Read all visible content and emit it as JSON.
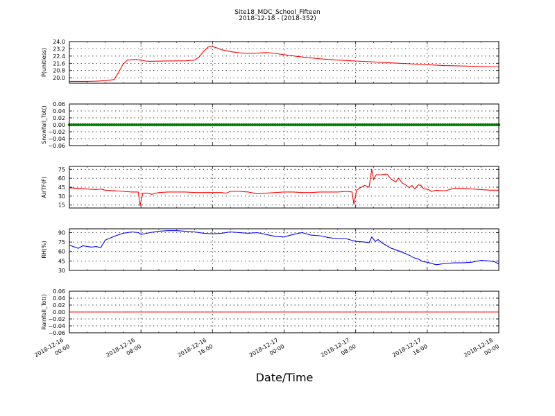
{
  "figure": {
    "title": "Site18_MDC_School_Fifteen",
    "subtitle": "2018-12-18 - (2018-352)",
    "xlabel": "Date/Time",
    "xticks": [
      {
        "t": 0,
        "line1": "2018-12-16",
        "line2": "00:00"
      },
      {
        "t": 8,
        "line1": "2018-12-16",
        "line2": "08:00"
      },
      {
        "t": 16,
        "line1": "2018-12-16",
        "line2": "16:00"
      },
      {
        "t": 24,
        "line1": "2018-12-17",
        "line2": "00:00"
      },
      {
        "t": 32,
        "line1": "2018-12-17",
        "line2": "08:00"
      },
      {
        "t": 40,
        "line1": "2018-12-17",
        "line2": "16:00"
      },
      {
        "t": 48,
        "line1": "2018-12-18",
        "line2": "00:00"
      }
    ]
  },
  "chart_data": [
    {
      "type": "line",
      "ylabel": "P(unitless)",
      "color": "#ff0000",
      "ylim": [
        19.4,
        24.0
      ],
      "yticks": [
        20.0,
        20.8,
        21.6,
        22.4,
        23.2,
        24.0
      ],
      "ytick_labels": [
        "20.0",
        "20.8",
        "21.6",
        "22.4",
        "23.2",
        "24.0"
      ],
      "x_hours": [
        0,
        1,
        2,
        3,
        4,
        5,
        5.5,
        6,
        6.5,
        7,
        7.5,
        8,
        8.5,
        9,
        10,
        11,
        12,
        13,
        14,
        14.5,
        15,
        15.5,
        15.8,
        16.5,
        17,
        18,
        19,
        20,
        21,
        22,
        23,
        24,
        26,
        28,
        30,
        32,
        34,
        36,
        38,
        40,
        42,
        44,
        46,
        48
      ],
      "values": [
        19.6,
        19.6,
        19.6,
        19.62,
        19.68,
        19.8,
        20.6,
        21.5,
        21.95,
        22.0,
        22.02,
        21.95,
        21.85,
        21.82,
        21.84,
        21.86,
        21.87,
        21.88,
        21.95,
        22.3,
        22.9,
        23.4,
        23.5,
        23.3,
        23.1,
        22.9,
        22.75,
        22.7,
        22.72,
        22.8,
        22.7,
        22.55,
        22.3,
        22.1,
        21.95,
        21.85,
        21.75,
        21.65,
        21.55,
        21.45,
        21.35,
        21.3,
        21.25,
        21.2
      ]
    },
    {
      "type": "line",
      "ylabel": "Snowfall_Tot()",
      "color": "#008000",
      "markers": true,
      "ylim": [
        -0.06,
        0.06
      ],
      "yticks": [
        -0.06,
        -0.04,
        -0.02,
        0.0,
        0.02,
        0.04,
        0.06
      ],
      "ytick_labels": [
        "−0.06",
        "−0.04",
        "−0.02",
        "0.00",
        "0.02",
        "0.04",
        "0.06"
      ],
      "x_hours": [
        0,
        48
      ],
      "values": [
        0,
        0
      ]
    },
    {
      "type": "line",
      "ylabel": "AirTF(F)",
      "color": "#ff0000",
      "ylim": [
        10,
        80
      ],
      "yticks": [
        15,
        30,
        45,
        60,
        75
      ],
      "ytick_labels": [
        "15",
        "30",
        "45",
        "60",
        "75"
      ],
      "x_hours": [
        0,
        1,
        2,
        3,
        3.5,
        4,
        5,
        6,
        7,
        7.7,
        7.9,
        8.2,
        8.8,
        9.2,
        10,
        11,
        12,
        13,
        14,
        15,
        16,
        17,
        17.5,
        18,
        19,
        20,
        21,
        22,
        23,
        24,
        25,
        26,
        27,
        28,
        29,
        30,
        31,
        31.6,
        31.8,
        32.1,
        32.5,
        33,
        33.5,
        33.8,
        34,
        34.3,
        34.8,
        35.5,
        36,
        36.5,
        36.8,
        37.2,
        37.6,
        38,
        38.3,
        38.6,
        39,
        39.3,
        39.6,
        40,
        40.5,
        41,
        41.5,
        42,
        43,
        44,
        45,
        46,
        47,
        48
      ],
      "values": [
        44,
        43,
        42,
        41,
        42,
        40,
        39,
        38,
        37,
        37,
        14,
        35,
        35,
        33,
        36,
        37,
        37,
        37,
        36,
        36,
        36,
        36,
        35,
        38,
        38,
        37,
        34,
        35,
        36,
        37,
        37,
        36,
        36,
        37,
        37,
        37,
        38,
        37,
        16,
        40,
        44,
        48,
        45,
        75,
        58,
        66,
        66,
        67,
        58,
        54,
        60,
        52,
        49,
        44,
        48,
        42,
        49,
        48,
        42,
        42,
        38,
        40,
        39,
        39,
        43,
        43,
        42,
        41,
        40,
        40
      ]
    },
    {
      "type": "line",
      "ylabel": "RH(%)",
      "color": "#0000ff",
      "ylim": [
        30,
        96
      ],
      "yticks": [
        30,
        45,
        60,
        75,
        90
      ],
      "ytick_labels": [
        "30",
        "45",
        "60",
        "75",
        "90"
      ],
      "x_hours": [
        0,
        1,
        1.5,
        2,
        2.5,
        3,
        3.5,
        4,
        5,
        6,
        7,
        7.7,
        8,
        9,
        10,
        11,
        12,
        13,
        14,
        15,
        16,
        17,
        18,
        19,
        20,
        21,
        22,
        23,
        24,
        25,
        26,
        27,
        28,
        29,
        30,
        31,
        32,
        33,
        33.5,
        33.8,
        34.2,
        34.5,
        35,
        36,
        37,
        38,
        38.5,
        39,
        39.5,
        40,
        41,
        42,
        43,
        44,
        45,
        46,
        47,
        47.5,
        48
      ],
      "values": [
        70,
        65,
        69,
        68,
        67,
        68,
        66,
        78,
        84,
        89,
        91,
        90,
        87,
        90,
        92,
        93,
        93,
        92,
        91,
        89,
        88,
        89,
        91,
        90,
        89,
        90,
        87,
        84,
        83,
        87,
        90,
        86,
        85,
        82,
        80,
        80,
        76,
        75,
        74,
        83,
        76,
        79,
        73,
        65,
        60,
        54,
        50,
        48,
        44,
        43,
        39,
        41,
        42,
        42,
        43,
        46,
        45,
        44,
        40
      ]
    },
    {
      "type": "line",
      "ylabel": "Rainfall_Tot()",
      "color": "#ff0000",
      "ylim": [
        -0.06,
        0.06
      ],
      "yticks": [
        -0.06,
        -0.04,
        -0.02,
        0.0,
        0.02,
        0.04,
        0.06
      ],
      "ytick_labels": [
        "−0.06",
        "−0.04",
        "−0.02",
        "0.00",
        "0.02",
        "0.04",
        "0.06"
      ],
      "x_hours": [
        0,
        48
      ],
      "values": [
        0,
        0
      ]
    }
  ]
}
